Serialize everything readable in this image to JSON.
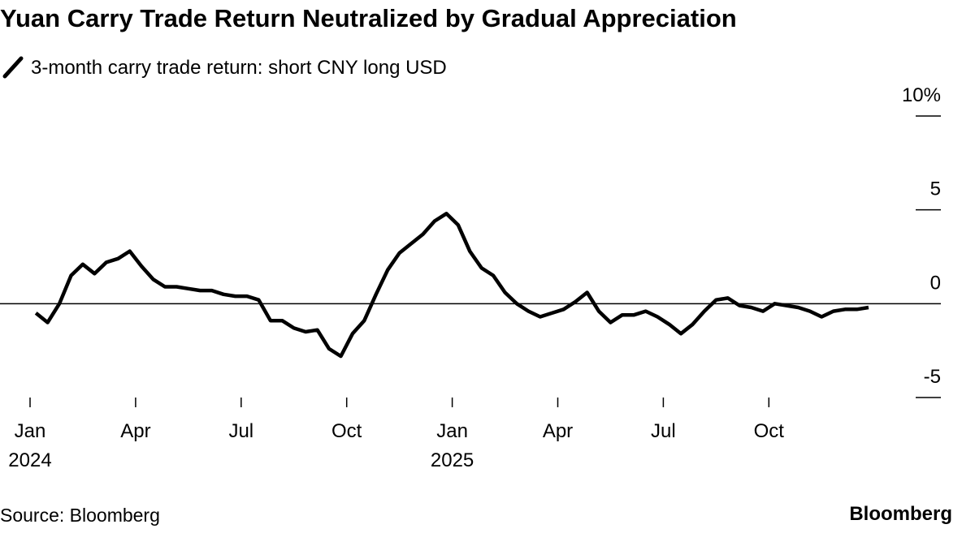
{
  "chart_data": {
    "type": "line",
    "title": "Yuan Carry Trade Return Neutralized by Gradual Appreciation",
    "source": "Source: Bloomberg",
    "brand": "Bloomberg",
    "x": [
      "2024-01",
      "2024-01",
      "2024-01",
      "2024-02",
      "2024-02",
      "2024-02",
      "2024-03",
      "2024-03",
      "2024-03",
      "2024-04",
      "2024-04",
      "2024-04",
      "2024-05",
      "2024-05",
      "2024-05",
      "2024-06",
      "2024-06",
      "2024-06",
      "2024-07",
      "2024-07",
      "2024-07",
      "2024-08",
      "2024-08",
      "2024-08",
      "2024-09",
      "2024-09",
      "2024-09",
      "2024-10",
      "2024-10",
      "2024-10",
      "2024-11",
      "2024-11",
      "2024-11",
      "2024-12",
      "2024-12",
      "2024-12",
      "2025-01",
      "2025-01",
      "2025-01",
      "2025-02",
      "2025-02",
      "2025-02",
      "2025-03",
      "2025-03",
      "2025-03",
      "2025-04",
      "2025-04",
      "2025-04",
      "2025-05",
      "2025-05",
      "2025-05",
      "2025-06",
      "2025-06",
      "2025-06",
      "2025-07",
      "2025-07",
      "2025-07",
      "2025-08",
      "2025-08",
      "2025-08",
      "2025-09",
      "2025-09",
      "2025-09",
      "2025-10",
      "2025-10",
      "2025-10",
      "2025-11",
      "2025-11",
      "2025-11",
      "2025-12",
      "2025-12",
      "2025-12"
    ],
    "series": [
      {
        "name": "3-month carry trade return: short CNY long USD",
        "color": "#000000",
        "values": [
          -0.5,
          -1.0,
          0.0,
          1.5,
          2.1,
          1.6,
          2.2,
          2.4,
          2.8,
          2.0,
          1.3,
          0.9,
          0.9,
          0.8,
          0.7,
          0.7,
          0.5,
          0.4,
          0.4,
          0.2,
          -0.9,
          -0.9,
          -1.3,
          -1.5,
          -1.4,
          -2.4,
          -2.8,
          -1.6,
          -0.9,
          0.5,
          1.8,
          2.7,
          3.2,
          3.7,
          4.4,
          4.8,
          4.2,
          2.8,
          1.9,
          1.5,
          0.6,
          0.0,
          -0.4,
          -0.7,
          -0.5,
          -0.3,
          0.1,
          0.6,
          -0.4,
          -1.0,
          -0.6,
          -0.6,
          -0.4,
          -0.7,
          -1.1,
          -1.6,
          -1.1,
          -0.4,
          0.2,
          0.3,
          -0.1,
          -0.2,
          -0.4,
          0.0,
          -0.1,
          -0.2,
          -0.4,
          -0.7,
          -0.4,
          -0.3,
          -0.3,
          -0.2
        ]
      }
    ],
    "ylim": [
      -5,
      10
    ],
    "yticks": [
      {
        "value": 10,
        "label": "10%"
      },
      5,
      0,
      -5
    ],
    "xticks": [
      {
        "value": "2024-01",
        "label": "Jan"
      },
      {
        "value": "2024-04",
        "label": "Apr"
      },
      {
        "value": "2024-07",
        "label": "Jul"
      },
      {
        "value": "2024-10",
        "label": "Oct"
      },
      {
        "value": "2025-01",
        "label": "Jan"
      },
      {
        "value": "2025-04",
        "label": "Apr"
      },
      {
        "value": "2025-07",
        "label": "Jul"
      },
      {
        "value": "2025-10",
        "label": "Oct"
      }
    ],
    "xtick_years": [
      {
        "value": "2024-01",
        "label": "2024"
      },
      {
        "value": "2025-01",
        "label": "2025"
      }
    ]
  }
}
